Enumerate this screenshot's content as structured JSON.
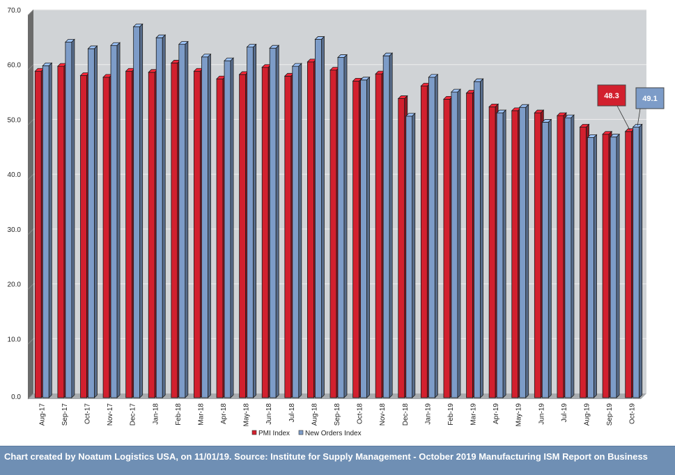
{
  "chart_data": {
    "type": "bar",
    "title": "",
    "xlabel": "",
    "ylabel": "",
    "ylim": [
      0,
      70
    ],
    "yticks": [
      "0.0",
      "10.0",
      "20.0",
      "30.0",
      "40.0",
      "50.0",
      "60.0",
      "70.0"
    ],
    "grid": true,
    "legend_position": "bottom-center",
    "style": "3d-clustered-column",
    "categories": [
      "Aug-17",
      "Sep-17",
      "Oct-17",
      "Nov-17",
      "Dec-17",
      "Jan-18",
      "Feb-18",
      "Mar-18",
      "Apr-18",
      "May-18",
      "Jun-18",
      "Jul-18",
      "Aug-18",
      "Sep-18",
      "Oct-18",
      "Nov-18",
      "Dec-18",
      "Jan-19",
      "Feb-19",
      "Mar-19",
      "Apr-19",
      "May-19",
      "Jun-19",
      "Jul-19",
      "Aug-19",
      "Sep-19",
      "Oct-19"
    ],
    "series": [
      {
        "name": "PMI Index",
        "color": "#d2202e",
        "values": [
          59.3,
          60.2,
          58.5,
          58.2,
          59.3,
          59.1,
          60.8,
          59.3,
          57.9,
          58.7,
          60.0,
          58.4,
          61.0,
          59.5,
          57.5,
          58.8,
          54.3,
          56.6,
          54.2,
          55.3,
          52.8,
          52.1,
          51.7,
          51.2,
          49.1,
          47.8,
          48.3
        ]
      },
      {
        "name": "New Orders Index",
        "color": "#7d9cc8",
        "values": [
          60.3,
          64.6,
          63.4,
          64.0,
          67.4,
          65.4,
          64.2,
          61.9,
          61.2,
          63.7,
          63.5,
          60.2,
          65.1,
          61.8,
          57.7,
          62.1,
          51.1,
          58.2,
          55.5,
          57.4,
          51.7,
          52.7,
          50.0,
          50.8,
          47.2,
          47.3,
          49.1
        ]
      }
    ],
    "annotations": [
      {
        "series": "PMI Index",
        "category": "Oct-19",
        "label": "48.3",
        "color": "#d2202e"
      },
      {
        "series": "New Orders Index",
        "category": "Oct-19",
        "label": "49.1",
        "color": "#7d9cc8"
      }
    ],
    "colors": {
      "plot_background": "#d0d3d6",
      "wall_side": "#6b6b6b",
      "floor": "#a8abae",
      "gridline": "#eeeeee"
    }
  },
  "footer": {
    "text": "Chart created by Noatum Logistics USA, on 11/01/19. Source: Institute for Supply Management - October 2019 Manufacturing ISM Report on Business",
    "background": "#6f8fb4"
  }
}
